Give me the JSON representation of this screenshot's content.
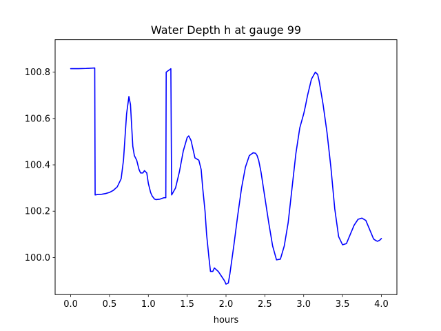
{
  "chart_data": {
    "type": "line",
    "title": "Water Depth h at gauge 99",
    "xlabel": "hours",
    "ylabel": "",
    "xlim": [
      -0.2,
      4.2
    ],
    "ylim": [
      99.84,
      100.94
    ],
    "xticks": [
      0.0,
      0.5,
      1.0,
      1.5,
      2.0,
      2.5,
      3.0,
      3.5,
      4.0
    ],
    "xtick_labels": [
      "0.0",
      "0.5",
      "1.0",
      "1.5",
      "2.0",
      "2.5",
      "3.0",
      "3.5",
      "4.0"
    ],
    "yticks": [
      100.0,
      100.2,
      100.4,
      100.6,
      100.8
    ],
    "ytick_labels": [
      "100.0",
      "100.2",
      "100.4",
      "100.6",
      "100.8"
    ],
    "grid": false,
    "series": [
      {
        "color": "#0000ff",
        "x": [
          0.0,
          0.1,
          0.2,
          0.31,
          0.315,
          0.35,
          0.4,
          0.45,
          0.5,
          0.55,
          0.6,
          0.65,
          0.68,
          0.7,
          0.72,
          0.75,
          0.77,
          0.8,
          0.82,
          0.85,
          0.88,
          0.9,
          0.93,
          0.95,
          0.98,
          1.0,
          1.03,
          1.05,
          1.08,
          1.1,
          1.15,
          1.2,
          1.225,
          1.23,
          1.25,
          1.28,
          1.29,
          1.3,
          1.35,
          1.4,
          1.45,
          1.5,
          1.52,
          1.55,
          1.6,
          1.65,
          1.68,
          1.7,
          1.73,
          1.75,
          1.78,
          1.8,
          1.83,
          1.85,
          1.9,
          1.95,
          1.98,
          2.0,
          2.03,
          2.05,
          2.1,
          2.15,
          2.2,
          2.25,
          2.3,
          2.35,
          2.38,
          2.4,
          2.42,
          2.45,
          2.5,
          2.55,
          2.6,
          2.65,
          2.7,
          2.75,
          2.8,
          2.85,
          2.9,
          2.95,
          3.0,
          3.02,
          3.05,
          3.1,
          3.15,
          3.18,
          3.2,
          3.25,
          3.3,
          3.35,
          3.4,
          3.45,
          3.5,
          3.55,
          3.6,
          3.65,
          3.7,
          3.75,
          3.8,
          3.85,
          3.9,
          3.93,
          3.95,
          3.98,
          4.0
        ],
        "values": [
          100.815,
          100.815,
          100.816,
          100.818,
          100.27,
          100.272,
          100.273,
          100.276,
          100.281,
          100.29,
          100.305,
          100.34,
          100.42,
          100.52,
          100.62,
          100.695,
          100.66,
          100.48,
          100.44,
          100.42,
          100.38,
          100.365,
          100.365,
          100.375,
          100.365,
          100.32,
          100.28,
          100.265,
          100.252,
          100.25,
          100.252,
          100.258,
          100.258,
          100.8,
          100.805,
          100.812,
          100.815,
          100.27,
          100.3,
          100.37,
          100.46,
          100.518,
          100.525,
          100.505,
          100.43,
          100.42,
          100.38,
          100.3,
          100.2,
          100.1,
          100.0,
          99.94,
          99.94,
          99.955,
          99.94,
          99.915,
          99.9,
          99.885,
          99.89,
          99.93,
          100.05,
          100.18,
          100.3,
          100.39,
          100.44,
          100.452,
          100.45,
          100.44,
          100.42,
          100.37,
          100.26,
          100.15,
          100.05,
          99.99,
          99.993,
          100.05,
          100.15,
          100.3,
          100.45,
          100.56,
          100.62,
          100.65,
          100.7,
          100.77,
          100.8,
          100.79,
          100.76,
          100.66,
          100.54,
          100.39,
          100.21,
          100.09,
          100.055,
          100.06,
          100.1,
          100.14,
          100.165,
          100.17,
          100.16,
          100.12,
          100.08,
          100.073,
          100.07,
          100.075,
          100.082
        ]
      }
    ]
  }
}
